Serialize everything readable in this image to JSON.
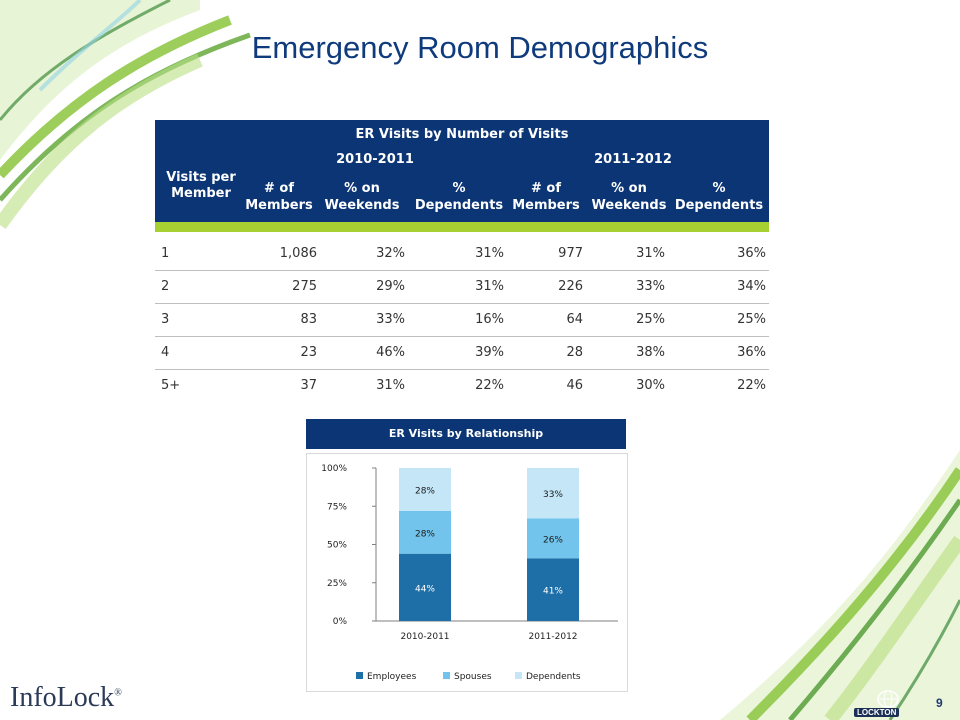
{
  "page": {
    "title": "Emergency Room Demographics",
    "page_number": "9",
    "brand_left": "InfoLock",
    "brand_left_mark": "®",
    "brand_right": "LOCKTON"
  },
  "table": {
    "caption": "ER Visits by Number of Visits",
    "period_1": "2010-2011",
    "period_2": "2011-2012",
    "row_header": "Visits per Member",
    "columns": [
      "# of Members",
      "% on Weekends",
      "% Dependents",
      "# of Members",
      "% on Weekends",
      "% Dependents"
    ],
    "rows": [
      [
        "1",
        "1,086",
        "32%",
        "31%",
        "977",
        "31%",
        "36%"
      ],
      [
        "2",
        "275",
        "29%",
        "31%",
        "226",
        "33%",
        "34%"
      ],
      [
        "3",
        "83",
        "33%",
        "16%",
        "64",
        "25%",
        "25%"
      ],
      [
        "4",
        "23",
        "46%",
        "39%",
        "28",
        "38%",
        "36%"
      ],
      [
        "5+",
        "37",
        "31%",
        "22%",
        "46",
        "30%",
        "22%"
      ]
    ]
  },
  "chart_data": {
    "type": "bar",
    "stacked": true,
    "title": "ER Visits by Relationship",
    "categories": [
      "2010-2011",
      "2011-2012"
    ],
    "series": [
      {
        "name": "Employees",
        "values": [
          44,
          41
        ],
        "labels": [
          "44%",
          "41%"
        ],
        "color": "#1e6fa8"
      },
      {
        "name": "Spouses",
        "values": [
          28,
          26
        ],
        "labels": [
          "28%",
          "26%"
        ],
        "color": "#73c4ec"
      },
      {
        "name": "Dependents",
        "values": [
          28,
          33
        ],
        "labels": [
          "28%",
          "33%"
        ],
        "color": "#c4e6f7"
      }
    ],
    "ylim": [
      0,
      100
    ],
    "yticks": [
      "0%",
      "25%",
      "50%",
      "75%",
      "100%"
    ],
    "legend": "bottom"
  }
}
